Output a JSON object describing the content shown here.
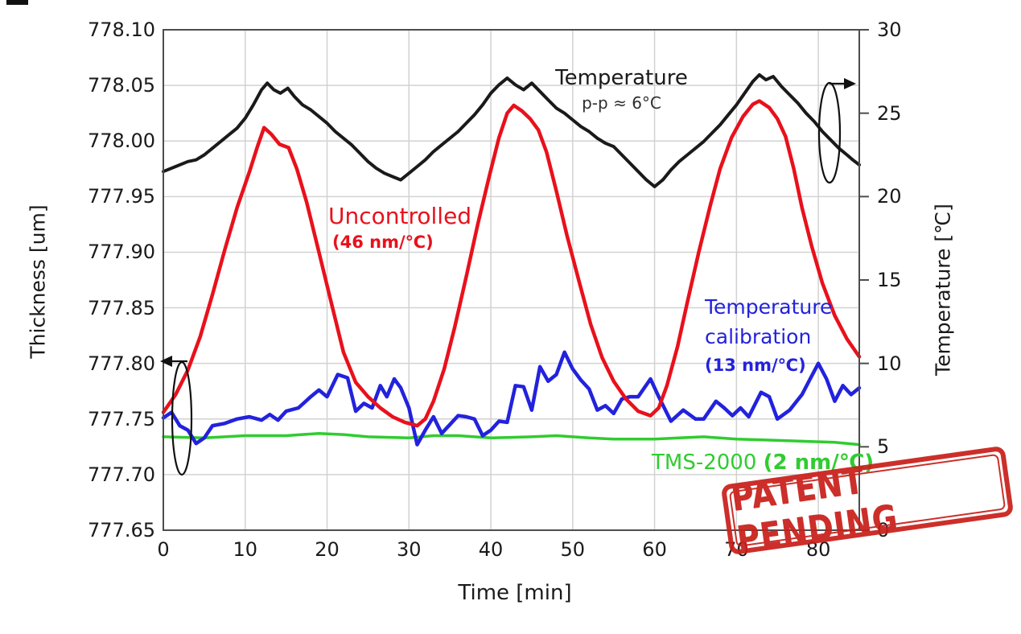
{
  "page": {
    "background": "#ffffff"
  },
  "colors": {
    "temperature": "#1a1a1a",
    "uncontrolled": "#e8111c",
    "calibration": "#2222dd",
    "tms": "#30cc30",
    "grid": "#d2d2d2",
    "frame": "#4d4d4d",
    "stamp": "#c9201a"
  },
  "annotations": {
    "temperature_label": "Temperature",
    "temperature_pp": "p-p ≈ 6°C",
    "uncontrolled_label": "Uncontrolled",
    "uncontrolled_coeff": "(46 nm/℃)",
    "calibration_line1": "Temperature",
    "calibration_line2": "calibration",
    "calibration_coeff": "(13 nm/℃)",
    "tms_label": "TMS-2000 ",
    "tms_coeff": "(2 nm/℃)",
    "stamp": "PATENT PENDING"
  },
  "axes": {
    "left": {
      "title": "Thickness [um]",
      "ticks": [
        "778.10",
        "778.05",
        "778.00",
        "777.95",
        "777.90",
        "777.85",
        "777.80",
        "777.75",
        "777.70",
        "777.65"
      ]
    },
    "right": {
      "title": "Temperature [℃]",
      "ticks": [
        "30",
        "25",
        "20",
        "15",
        "10",
        "5",
        "0"
      ]
    },
    "bottom": {
      "title": "Time [min]",
      "ticks": [
        "0",
        "10",
        "20",
        "30",
        "40",
        "50",
        "60",
        "70",
        "80"
      ]
    }
  },
  "chart_data": {
    "type": "line",
    "xlabel": "Time [min]",
    "ylabel_left": "Thickness [um]",
    "ylabel_right": "Temperature [℃]",
    "x_range": [
      0,
      85
    ],
    "left_range": [
      777.65,
      778.1
    ],
    "right_range": [
      0,
      30
    ],
    "grid": true,
    "series": [
      {
        "name": "Temperature",
        "axis": "right",
        "color": "temperature",
        "annotation": "p-p ≈ 6°C",
        "points": [
          [
            0,
            21.5
          ],
          [
            1.5,
            21.8
          ],
          [
            3,
            22.1
          ],
          [
            4,
            22.2
          ],
          [
            5,
            22.5
          ],
          [
            6,
            22.9
          ],
          [
            7,
            23.3
          ],
          [
            8,
            23.7
          ],
          [
            9,
            24.1
          ],
          [
            10,
            24.7
          ],
          [
            11,
            25.5
          ],
          [
            12,
            26.4
          ],
          [
            12.7,
            26.8
          ],
          [
            13.5,
            26.4
          ],
          [
            14.3,
            26.2
          ],
          [
            15.2,
            26.5
          ],
          [
            16,
            26.0
          ],
          [
            17,
            25.5
          ],
          [
            18,
            25.2
          ],
          [
            19,
            24.8
          ],
          [
            20,
            24.4
          ],
          [
            21,
            23.9
          ],
          [
            22,
            23.5
          ],
          [
            23,
            23.1
          ],
          [
            24,
            22.6
          ],
          [
            25,
            22.1
          ],
          [
            26,
            21.7
          ],
          [
            27,
            21.4
          ],
          [
            28,
            21.2
          ],
          [
            29,
            21.0
          ],
          [
            30,
            21.4
          ],
          [
            31,
            21.8
          ],
          [
            32,
            22.2
          ],
          [
            33,
            22.7
          ],
          [
            34,
            23.1
          ],
          [
            35,
            23.5
          ],
          [
            36,
            23.9
          ],
          [
            37,
            24.4
          ],
          [
            38,
            24.9
          ],
          [
            39,
            25.5
          ],
          [
            40,
            26.2
          ],
          [
            41,
            26.7
          ],
          [
            42,
            27.1
          ],
          [
            43,
            26.7
          ],
          [
            44,
            26.4
          ],
          [
            45,
            26.8
          ],
          [
            46,
            26.3
          ],
          [
            47,
            25.8
          ],
          [
            48,
            25.3
          ],
          [
            49,
            25.0
          ],
          [
            50,
            24.6
          ],
          [
            51,
            24.2
          ],
          [
            52,
            23.9
          ],
          [
            53,
            23.5
          ],
          [
            54,
            23.2
          ],
          [
            55,
            23.0
          ],
          [
            56,
            22.5
          ],
          [
            57,
            22.0
          ],
          [
            58,
            21.5
          ],
          [
            59,
            21.0
          ],
          [
            60,
            20.6
          ],
          [
            61,
            21.0
          ],
          [
            62,
            21.6
          ],
          [
            63,
            22.1
          ],
          [
            64,
            22.5
          ],
          [
            65,
            22.9
          ],
          [
            66,
            23.3
          ],
          [
            67,
            23.8
          ],
          [
            68,
            24.3
          ],
          [
            69,
            24.9
          ],
          [
            70,
            25.5
          ],
          [
            71,
            26.2
          ],
          [
            72,
            26.9
          ],
          [
            72.8,
            27.3
          ],
          [
            73.6,
            27.0
          ],
          [
            74.5,
            27.2
          ],
          [
            75.5,
            26.6
          ],
          [
            76.5,
            26.1
          ],
          [
            77.5,
            25.6
          ],
          [
            78.5,
            25.0
          ],
          [
            79.5,
            24.5
          ],
          [
            80.5,
            23.9
          ],
          [
            81.5,
            23.4
          ],
          [
            82.5,
            22.9
          ],
          [
            83.5,
            22.5
          ],
          [
            84.2,
            22.2
          ],
          [
            85,
            21.9
          ]
        ]
      },
      {
        "name": "Uncontrolled",
        "axis": "left",
        "color": "uncontrolled",
        "annotation": "46 nm/℃",
        "points": [
          [
            0,
            777.756
          ],
          [
            1.5,
            777.772
          ],
          [
            3,
            777.794
          ],
          [
            4.5,
            777.824
          ],
          [
            6,
            777.862
          ],
          [
            7.5,
            777.902
          ],
          [
            9,
            777.94
          ],
          [
            10.5,
            777.972
          ],
          [
            11.5,
            777.995
          ],
          [
            12.3,
            778.012
          ],
          [
            13.2,
            778.006
          ],
          [
            14.2,
            777.997
          ],
          [
            15.3,
            777.994
          ],
          [
            16.3,
            777.975
          ],
          [
            17.5,
            777.945
          ],
          [
            19,
            777.9
          ],
          [
            20.5,
            777.855
          ],
          [
            22,
            777.81
          ],
          [
            23.5,
            777.783
          ],
          [
            25,
            777.77
          ],
          [
            26.5,
            777.76
          ],
          [
            28,
            777.752
          ],
          [
            29.5,
            777.747
          ],
          [
            31,
            777.744
          ],
          [
            32,
            777.75
          ],
          [
            33,
            777.766
          ],
          [
            34.3,
            777.795
          ],
          [
            35.6,
            777.833
          ],
          [
            37,
            777.878
          ],
          [
            38.4,
            777.925
          ],
          [
            39.8,
            777.968
          ],
          [
            41,
            778.003
          ],
          [
            42,
            778.025
          ],
          [
            42.8,
            778.032
          ],
          [
            43.8,
            778.027
          ],
          [
            44.8,
            778.02
          ],
          [
            45.8,
            778.01
          ],
          [
            46.8,
            777.99
          ],
          [
            48,
            777.955
          ],
          [
            49.3,
            777.915
          ],
          [
            50.8,
            777.873
          ],
          [
            52.2,
            777.835
          ],
          [
            53.6,
            777.805
          ],
          [
            55,
            777.784
          ],
          [
            56.5,
            777.768
          ],
          [
            58,
            777.757
          ],
          [
            59.5,
            777.753
          ],
          [
            60.5,
            777.76
          ],
          [
            61.5,
            777.78
          ],
          [
            62.8,
            777.815
          ],
          [
            64,
            777.855
          ],
          [
            65.4,
            777.9
          ],
          [
            66.8,
            777.942
          ],
          [
            68,
            777.975
          ],
          [
            69.4,
            778.003
          ],
          [
            70.8,
            778.022
          ],
          [
            72,
            778.033
          ],
          [
            72.8,
            778.036
          ],
          [
            74,
            778.03
          ],
          [
            75,
            778.02
          ],
          [
            76,
            778.004
          ],
          [
            77,
            777.975
          ],
          [
            78,
            777.94
          ],
          [
            79.2,
            777.905
          ],
          [
            80.5,
            777.872
          ],
          [
            82,
            777.843
          ],
          [
            83.5,
            777.822
          ],
          [
            85,
            777.806
          ]
        ]
      },
      {
        "name": "Temperature calibration",
        "axis": "left",
        "color": "calibration",
        "annotation": "13 nm/℃",
        "points": [
          [
            0,
            777.751
          ],
          [
            1,
            777.756
          ],
          [
            2,
            777.744
          ],
          [
            3,
            777.74
          ],
          [
            4,
            777.728
          ],
          [
            5,
            777.733
          ],
          [
            6,
            777.744
          ],
          [
            7.5,
            777.746
          ],
          [
            9,
            777.75
          ],
          [
            10.5,
            777.752
          ],
          [
            12,
            777.749
          ],
          [
            13,
            777.754
          ],
          [
            14,
            777.749
          ],
          [
            15,
            777.757
          ],
          [
            16.5,
            777.76
          ],
          [
            18,
            777.77
          ],
          [
            19,
            777.776
          ],
          [
            20,
            777.77
          ],
          [
            21.3,
            777.79
          ],
          [
            22.5,
            777.787
          ],
          [
            23.5,
            777.757
          ],
          [
            24.5,
            777.764
          ],
          [
            25.5,
            777.76
          ],
          [
            26.5,
            777.78
          ],
          [
            27.3,
            777.77
          ],
          [
            28.2,
            777.786
          ],
          [
            29,
            777.778
          ],
          [
            30,
            777.76
          ],
          [
            31,
            777.727
          ],
          [
            32,
            777.74
          ],
          [
            33,
            777.752
          ],
          [
            34,
            777.737
          ],
          [
            35,
            777.745
          ],
          [
            36,
            777.753
          ],
          [
            37,
            777.752
          ],
          [
            38,
            777.75
          ],
          [
            39,
            777.735
          ],
          [
            40,
            777.74
          ],
          [
            41,
            777.748
          ],
          [
            42,
            777.747
          ],
          [
            43,
            777.78
          ],
          [
            44,
            777.779
          ],
          [
            45,
            777.758
          ],
          [
            46,
            777.797
          ],
          [
            47,
            777.784
          ],
          [
            48,
            777.79
          ],
          [
            49,
            777.81
          ],
          [
            50,
            777.795
          ],
          [
            51,
            777.785
          ],
          [
            52,
            777.777
          ],
          [
            53,
            777.758
          ],
          [
            54,
            777.762
          ],
          [
            55,
            777.755
          ],
          [
            56,
            777.768
          ],
          [
            57,
            777.77
          ],
          [
            58,
            777.77
          ],
          [
            59.5,
            777.786
          ],
          [
            60.5,
            777.77
          ],
          [
            62,
            777.748
          ],
          [
            63.5,
            777.758
          ],
          [
            65,
            777.75
          ],
          [
            66,
            777.75
          ],
          [
            67.5,
            777.766
          ],
          [
            68.5,
            777.76
          ],
          [
            69.5,
            777.753
          ],
          [
            70.5,
            777.76
          ],
          [
            71.5,
            777.752
          ],
          [
            73,
            777.774
          ],
          [
            74,
            777.77
          ],
          [
            75,
            777.75
          ],
          [
            76.5,
            777.758
          ],
          [
            78,
            777.772
          ],
          [
            79,
            777.786
          ],
          [
            80,
            777.8
          ],
          [
            81,
            777.786
          ],
          [
            82,
            777.766
          ],
          [
            83,
            777.78
          ],
          [
            84,
            777.772
          ],
          [
            85,
            777.778
          ]
        ]
      },
      {
        "name": "TMS-2000",
        "axis": "left",
        "color": "tms",
        "annotation": "2 nm/℃",
        "points": [
          [
            0,
            777.734
          ],
          [
            5,
            777.733
          ],
          [
            10,
            777.735
          ],
          [
            15,
            777.735
          ],
          [
            19,
            777.737
          ],
          [
            22,
            777.736
          ],
          [
            25,
            777.734
          ],
          [
            30,
            777.733
          ],
          [
            33,
            777.735
          ],
          [
            36,
            777.735
          ],
          [
            40,
            777.733
          ],
          [
            45,
            777.734
          ],
          [
            48,
            777.735
          ],
          [
            52,
            777.733
          ],
          [
            55,
            777.732
          ],
          [
            60,
            777.732
          ],
          [
            63,
            777.733
          ],
          [
            66,
            777.734
          ],
          [
            70,
            777.732
          ],
          [
            74,
            777.731
          ],
          [
            78,
            777.73
          ],
          [
            82,
            777.729
          ],
          [
            85,
            777.727
          ]
        ]
      }
    ]
  }
}
